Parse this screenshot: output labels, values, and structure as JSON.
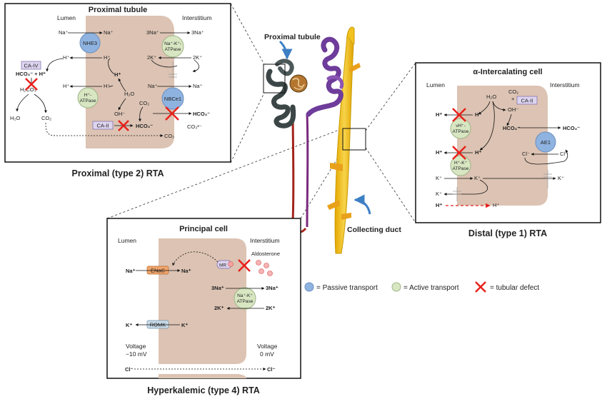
{
  "kidney": {
    "proximal_label": "Proximal tubule",
    "collecting_label": "Collecting duct"
  },
  "proximal": {
    "caption": "Proximal (type 2) RTA",
    "title": "Proximal tubule",
    "lumen": "Lumen",
    "interstitium": "Interstitium",
    "nhe3": "NHE3",
    "na": "Na⁺",
    "na_3": "3Na⁺",
    "k_2": "2K⁺",
    "h": "H⁺",
    "nak_atpase": [
      "Na⁺-K⁺-",
      "ATPase"
    ],
    "ca_iv": "CA-IV",
    "hco3_h": "HCO₃⁻ + H⁺",
    "h2co3": "H₂CO₃",
    "h2o": "H₂O",
    "co2": "CO₂",
    "h_atpase": [
      "H⁺-",
      "ATPase"
    ],
    "oh": "OH⁻",
    "ca_ii": "CA-II",
    "hco3": "HCO₃⁻",
    "co3": "CO₃²⁻",
    "co2_sup": "CO₂",
    "nbce1": "NBCe1"
  },
  "distal": {
    "caption": "Distal (type 1) RTA",
    "title": "α-Intercalating cell",
    "lumen": "Lumen",
    "interstitium": "Interstitium",
    "h2o": "H₂O",
    "co2": "CO₂",
    "plus": "+",
    "oh": "OH⁻",
    "ca_ii": "CA-II",
    "h": "H⁺",
    "vh_atpase": [
      "vH⁺-",
      "ATPase"
    ],
    "hk_atpase": [
      "H⁺-K⁺",
      "ATPase"
    ],
    "hco3": "HCO₃⁻",
    "ae1": "AE1",
    "cl": "Cl⁻",
    "k": "K⁺"
  },
  "principal": {
    "caption": "Hyperkalemic (type 4) RTA",
    "title": "Principal cell",
    "lumen": "Lumen",
    "interstitium": "Interstitium",
    "enac": "ENaC",
    "na": "Na⁺",
    "mr": "MR",
    "aldosterone": "Aldosterone",
    "na_3": "3Na⁺",
    "k_2": "2K⁺",
    "nak_atpase": [
      "Na⁺-K⁺",
      "ATPase"
    ],
    "romk": "ROMK",
    "k": "K⁺",
    "voltage_lumen": [
      "Voltage",
      "−10 mV"
    ],
    "voltage_int": [
      "Voltage",
      "0 mV"
    ],
    "cl": "Cl⁻"
  },
  "legend": {
    "passive": "= Passive transport",
    "active": "= Active transport",
    "defect": "= tubular defect"
  },
  "colors": {
    "cell": "#dcc3b3",
    "passive": "#8fb3e0",
    "active": "#d8e6c2",
    "enzyme": "#ddd4ef",
    "defect": "#e8211c",
    "collecting": "#f2c21e",
    "arrow_blue": "#3d7fc4"
  }
}
